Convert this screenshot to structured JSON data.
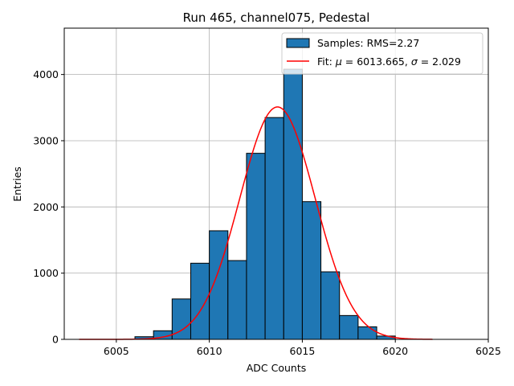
{
  "chart_data": {
    "type": "bar",
    "title": "Run 465, channel075, Pedestal",
    "xlabel": "ADC Counts",
    "ylabel": "Entries",
    "xlim": [
      6002.2,
      6025.0
    ],
    "ylim": [
      0,
      4700
    ],
    "x_ticks": [
      6005,
      6010,
      6015,
      6020,
      6025
    ],
    "y_ticks": [
      0,
      1000,
      2000,
      3000,
      4000
    ],
    "grid": true,
    "legend_position": "top-right",
    "bar_color": "#1f77b4",
    "fit_color": "#ff0000",
    "histogram": {
      "name": "Samples: RMS=2.27",
      "bin_width": 1,
      "bin_starts": [
        6006,
        6007,
        6008,
        6009,
        6010,
        6011,
        6012,
        6013,
        6014,
        6015,
        6016,
        6017,
        6018,
        6019
      ],
      "values": [
        40,
        130,
        610,
        1150,
        1640,
        1190,
        2810,
        3350,
        4080,
        2080,
        1020,
        360,
        190,
        50
      ]
    },
    "fit": {
      "name": "Fit: μ = 6013.665, σ = 2.029",
      "legend_prefix": "Fit: ",
      "legend_mu": "μ",
      "legend_mu_value": " = 6013.665, ",
      "legend_sigma": "σ",
      "legend_sigma_value": " = 2.029",
      "mu": 6013.665,
      "sigma": 2.029,
      "amplitude": 3510,
      "x_range": [
        6003,
        6022
      ]
    }
  }
}
